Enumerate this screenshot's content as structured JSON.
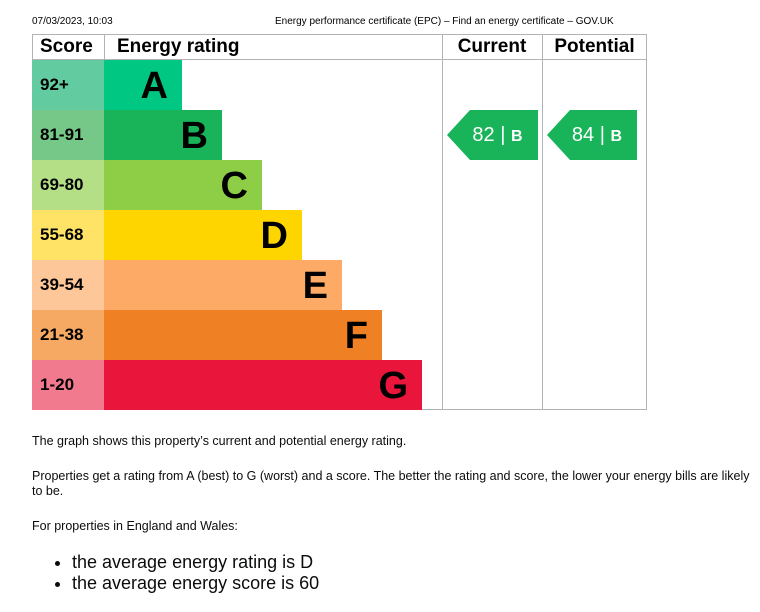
{
  "header": {
    "datetime": "07/03/2023, 10:03",
    "title": "Energy performance certificate (EPC) – Find an energy certificate – GOV.UK"
  },
  "graph": {
    "columns": {
      "score": "Score",
      "rating": "Energy rating",
      "current": "Current",
      "potential": "Potential"
    },
    "bands": [
      {
        "score": "92+",
        "letter": "A",
        "color": "#00c781",
        "score_bg": "#63cba0"
      },
      {
        "score": "81-91",
        "letter": "B",
        "color": "#19b459",
        "score_bg": "#75c888"
      },
      {
        "score": "69-80",
        "letter": "C",
        "color": "#8dce46",
        "score_bg": "#b4df86"
      },
      {
        "score": "55-68",
        "letter": "D",
        "color": "#ffd500",
        "score_bg": "#ffe366"
      },
      {
        "score": "39-54",
        "letter": "E",
        "color": "#fcaa65",
        "score_bg": "#fdc79a"
      },
      {
        "score": "21-38",
        "letter": "F",
        "color": "#ef8023",
        "score_bg": "#f5a963"
      },
      {
        "score": "1-20",
        "letter": "G",
        "color": "#e9153b",
        "score_bg": "#f17a8e"
      }
    ],
    "current": {
      "score": "82",
      "letter": "B",
      "band": 1,
      "color": "#19b459"
    },
    "potential": {
      "score": "84",
      "letter": "B",
      "band": 1,
      "color": "#19b459"
    },
    "separator": "|"
  },
  "text": {
    "p1": "The graph shows this property’s current and potential energy rating.",
    "p2": "Properties get a rating from A (best) to G (worst) and a score. The better the rating and score, the lower your energy bills are likely to be.",
    "p3": "For properties in England and Wales:",
    "bullets": [
      "the average energy rating is D",
      "the average energy score is 60"
    ]
  }
}
